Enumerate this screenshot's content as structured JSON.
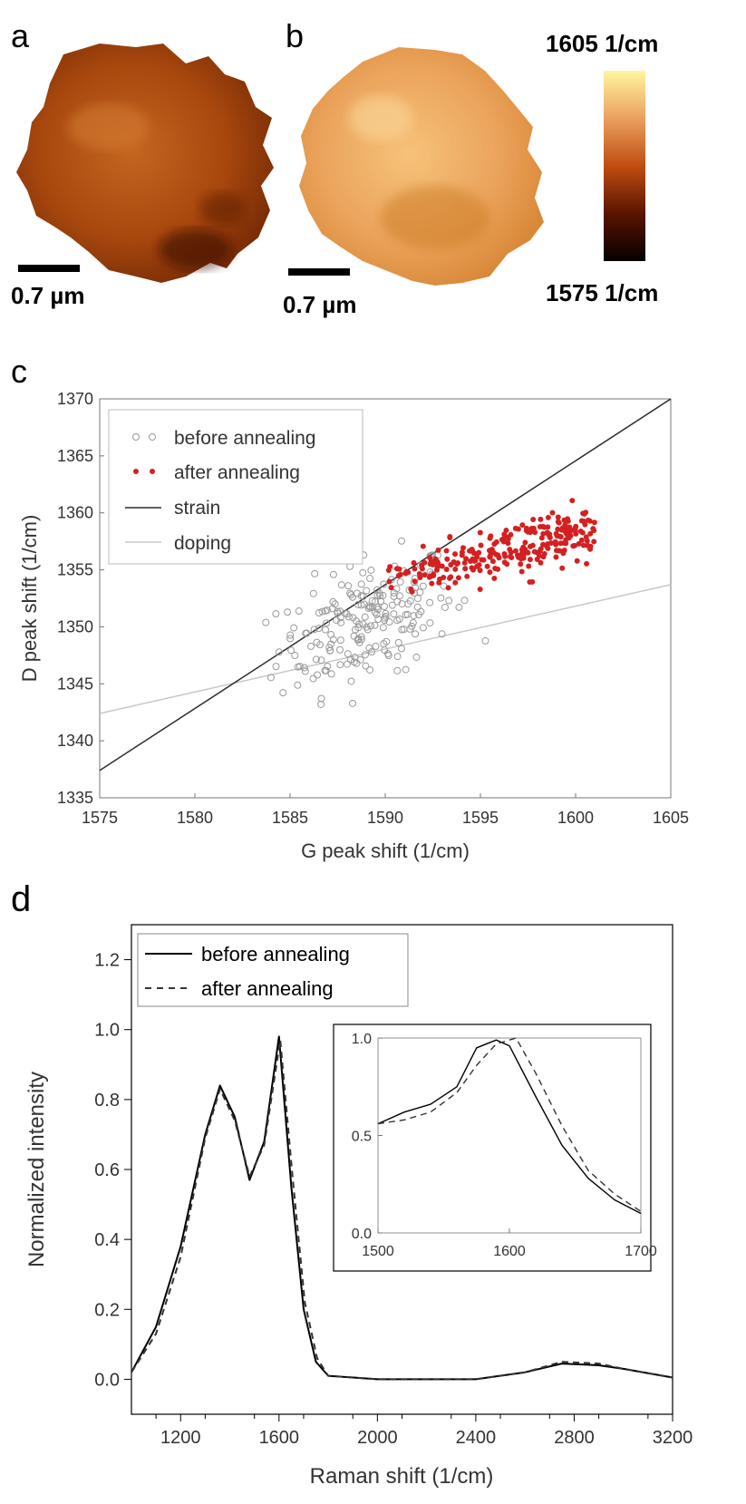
{
  "colors": {
    "heatmap_low": "#0a0000",
    "heatmap_mid": "#c0500f",
    "heatmap_high": "#fff6a0",
    "before_marker": "#9a9a9a",
    "after_marker": "#d42020",
    "strain_line": "#2b2b2b",
    "doping_line": "#c8c8c8",
    "spectrum_before": "#000000",
    "spectrum_after": "#333333"
  },
  "panel_labels": {
    "a": "a",
    "b": "b",
    "c": "c",
    "d": "d"
  },
  "maps": {
    "a": {
      "scalebar_label": "0.7 µm",
      "mean_g_peak": 1591
    },
    "b": {
      "scalebar_label": "0.7 µm",
      "mean_g_peak": 1597
    },
    "colorbar": {
      "max_label": "1605 1/cm",
      "min_label": "1575 1/cm",
      "min": 1575,
      "max": 1605
    }
  },
  "chart_data": [
    {
      "type": "scatter",
      "panel": "c",
      "xlabel": "G peak shift (1/cm)",
      "ylabel": "D peak shift (1/cm)",
      "xlim": [
        1575,
        1605
      ],
      "ylim": [
        1335,
        1370
      ],
      "xticks": [
        "1575",
        "1580",
        "1585",
        "1590",
        "1595",
        "1600",
        "1605"
      ],
      "yticks": [
        "1335",
        "1340",
        "1345",
        "1350",
        "1355",
        "1360",
        "1365",
        "1370"
      ],
      "legend_position": "top-left",
      "legend": {
        "before": "before annealing",
        "after": "after annealing",
        "strain": "strain",
        "doping": "doping"
      },
      "before_cluster": {
        "center": [
          1589,
          1350.5
        ],
        "spread": [
          2.3,
          2.6
        ],
        "range_x": [
          1582.5,
          1595.5
        ],
        "range_y": [
          1341,
          1362
        ]
      },
      "after_cluster": {
        "range_x": [
          1590,
          1601
        ],
        "range_y": [
          1353,
          1364
        ]
      },
      "strain_line": [
        [
          1575,
          1337.4
        ],
        [
          1605,
          1370
        ]
      ],
      "doping_line": [
        [
          1575,
          1342.4
        ],
        [
          1605,
          1353.7
        ]
      ]
    },
    {
      "type": "line",
      "panel": "d",
      "xlabel": "Raman shift (1/cm)",
      "ylabel": "Normalized intensity",
      "xlim": [
        1000,
        3200
      ],
      "ylim": [
        -0.1,
        1.3
      ],
      "xticks": [
        "1200",
        "1600",
        "2000",
        "2400",
        "2800",
        "3200"
      ],
      "yticks": [
        "0.0",
        "0.2",
        "0.4",
        "0.6",
        "0.8",
        "1.0",
        "1.2"
      ],
      "legend_position": "top-left",
      "series": [
        {
          "name": "before annealing",
          "style": "solid",
          "x": [
            1000,
            1100,
            1200,
            1300,
            1360,
            1420,
            1480,
            1540,
            1600,
            1650,
            1700,
            1750,
            1800,
            2000,
            2400,
            2600,
            2750,
            2900,
            3000,
            3200
          ],
          "y": [
            0.02,
            0.15,
            0.38,
            0.7,
            0.84,
            0.75,
            0.57,
            0.68,
            0.98,
            0.55,
            0.2,
            0.05,
            0.01,
            0.0,
            0.0,
            0.02,
            0.045,
            0.04,
            0.03,
            0.005
          ]
        },
        {
          "name": "after annealing",
          "style": "dashed",
          "x": [
            1000,
            1100,
            1200,
            1300,
            1360,
            1420,
            1480,
            1540,
            1605,
            1655,
            1705,
            1755,
            1800,
            2000,
            2400,
            2600,
            2750,
            2900,
            3000,
            3200
          ],
          "y": [
            0.02,
            0.13,
            0.35,
            0.69,
            0.83,
            0.74,
            0.58,
            0.67,
            0.97,
            0.58,
            0.22,
            0.06,
            0.01,
            0.0,
            0.0,
            0.02,
            0.05,
            0.045,
            0.03,
            0.005
          ]
        }
      ],
      "inset": {
        "xlim": [
          1500,
          1700
        ],
        "ylim": [
          0.0,
          1.0
        ],
        "xticks": [
          "1500",
          "1600",
          "1700"
        ],
        "yticks": [
          "0.0",
          "0.5",
          "1.0"
        ],
        "series": [
          {
            "name": "before annealing",
            "style": "solid",
            "x": [
              1500,
              1520,
              1540,
              1560,
              1575,
              1590,
              1600,
              1620,
              1640,
              1660,
              1680,
              1700
            ],
            "y": [
              0.56,
              0.62,
              0.66,
              0.75,
              0.95,
              0.99,
              0.96,
              0.7,
              0.45,
              0.28,
              0.17,
              0.1
            ]
          },
          {
            "name": "after annealing",
            "style": "dashed",
            "x": [
              1500,
              1520,
              1540,
              1560,
              1575,
              1590,
              1605,
              1620,
              1640,
              1660,
              1680,
              1700
            ],
            "y": [
              0.56,
              0.58,
              0.62,
              0.72,
              0.86,
              0.97,
              1.0,
              0.82,
              0.55,
              0.32,
              0.2,
              0.11
            ]
          }
        ]
      }
    }
  ]
}
